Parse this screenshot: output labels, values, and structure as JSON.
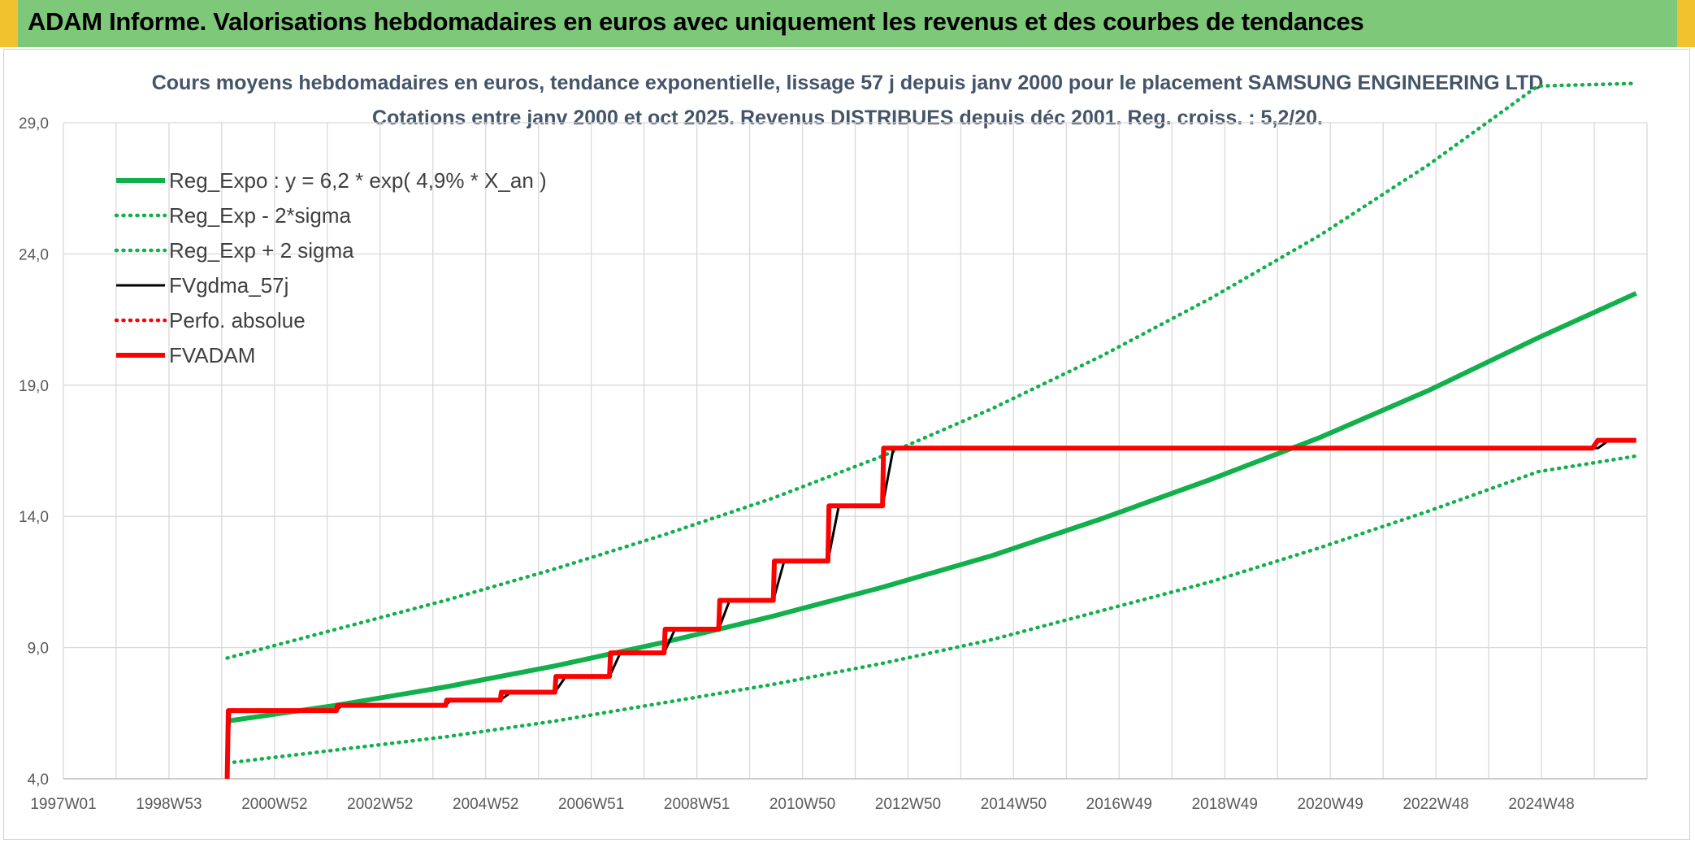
{
  "header": {
    "title": "ADAM Informe. Valorisations hebdomadaires en euros avec uniquement les revenus et des courbes de tendances"
  },
  "chart_data": {
    "type": "line",
    "title": "Cours moyens hebdomadaires en euros, tendance exponentielle, lissage 57 j depuis janv 2000 pour le placement SAMSUNG ENGINEERING LTD",
    "subtitle": "Cotations entre janv 2000 et oct 2025. Revenus DISTRIBUES depuis déc 2001. Reg. croiss. : 5,2/20.",
    "x_tick_labels": [
      "1997W01",
      "1998W53",
      "2000W52",
      "2002W52",
      "2004W52",
      "2006W51",
      "2008W51",
      "2010W50",
      "2012W50",
      "2014W50",
      "2016W49",
      "2018W49",
      "2020W49",
      "2022W48",
      "2024W48"
    ],
    "x_range": [
      1997.0,
      2026.0
    ],
    "y_ticks": [
      "4,0",
      "9,0",
      "14,0",
      "19,0",
      "24,0",
      "29,0"
    ],
    "ylim": [
      4.0,
      29.0
    ],
    "grid": true,
    "legend_position": "top-left",
    "colors": {
      "green": "#12b04c",
      "black": "#000000",
      "red": "#ff0000",
      "grid": "#d9d9d9"
    },
    "series": [
      {
        "name": "Reg_Expo : y = 6,2 * exp( 4,9% *  X_an )",
        "style": "solid-thick",
        "color": "#12b04c",
        "x": [
          2000.0,
          2002.0,
          2004.0,
          2006.0,
          2008.0,
          2010.0,
          2012.0,
          2014.0,
          2016.0,
          2018.0,
          2020.0,
          2022.0,
          2024.0,
          2025.8
        ],
        "y": [
          6.2,
          6.8,
          7.5,
          8.3,
          9.2,
          10.2,
          11.3,
          12.5,
          13.9,
          15.4,
          17.0,
          18.8,
          20.8,
          22.5
        ]
      },
      {
        "name": "Reg_Exp - 2*sigma",
        "style": "dotted",
        "color": "#12b04c",
        "x": [
          2000.0,
          2002.0,
          2004.0,
          2006.0,
          2008.0,
          2010.0,
          2012.0,
          2014.0,
          2016.0,
          2018.0,
          2020.0,
          2022.0,
          2024.0,
          2025.8
        ],
        "y": [
          4.6,
          5.1,
          5.6,
          6.2,
          6.9,
          7.6,
          8.4,
          9.3,
          10.4,
          11.5,
          12.8,
          14.2,
          15.7,
          16.3
        ]
      },
      {
        "name": "Reg_Exp + 2 sigma",
        "style": "dotted",
        "color": "#12b04c",
        "x": [
          2000.0,
          2002.0,
          2004.0,
          2006.0,
          2008.0,
          2010.0,
          2012.0,
          2014.0,
          2016.0,
          2018.0,
          2020.0,
          2022.0,
          2024.0,
          2025.8
        ],
        "y": [
          8.6,
          9.7,
          10.8,
          12.0,
          13.3,
          14.7,
          16.3,
          18.1,
          20.1,
          22.3,
          24.7,
          27.4,
          30.4,
          30.5
        ]
      },
      {
        "name": "FVgdma_57j",
        "style": "solid-thin",
        "color": "#000000",
        "x": [
          2000.0,
          2000.05,
          2002.0,
          2002.1,
          2004.0,
          2004.1,
          2005.0,
          2005.2,
          2006.0,
          2006.2,
          2007.0,
          2007.2,
          2008.0,
          2008.2,
          2009.0,
          2009.2,
          2010.0,
          2010.2,
          2011.0,
          2011.2,
          2012.0,
          2012.2,
          2025.1,
          2025.3,
          2025.8
        ],
        "y": [
          4.0,
          6.6,
          6.6,
          6.8,
          6.8,
          7.0,
          7.0,
          7.3,
          7.3,
          7.9,
          7.9,
          8.8,
          8.8,
          9.7,
          9.7,
          10.8,
          10.8,
          12.3,
          12.3,
          14.4,
          14.4,
          16.6,
          16.6,
          16.9,
          16.9
        ]
      },
      {
        "name": "Perfo. absolue",
        "style": "dotted",
        "color": "#ff0000",
        "x": [],
        "y": []
      },
      {
        "name": "FVADAM",
        "style": "solid-thick",
        "color": "#ff0000",
        "x": [
          2000.0,
          2000.02,
          2002.0,
          2002.02,
          2004.0,
          2004.02,
          2005.0,
          2005.02,
          2006.0,
          2006.02,
          2007.0,
          2007.02,
          2008.0,
          2008.02,
          2009.0,
          2009.02,
          2010.0,
          2010.02,
          2011.0,
          2011.02,
          2012.0,
          2012.02,
          2025.0,
          2025.1,
          2025.8
        ],
        "y": [
          4.0,
          6.6,
          6.6,
          6.8,
          6.8,
          7.0,
          7.0,
          7.3,
          7.3,
          7.9,
          7.9,
          8.8,
          8.8,
          9.7,
          9.7,
          10.8,
          10.8,
          12.3,
          12.3,
          14.4,
          14.4,
          16.6,
          16.6,
          16.9,
          16.9
        ]
      }
    ]
  }
}
